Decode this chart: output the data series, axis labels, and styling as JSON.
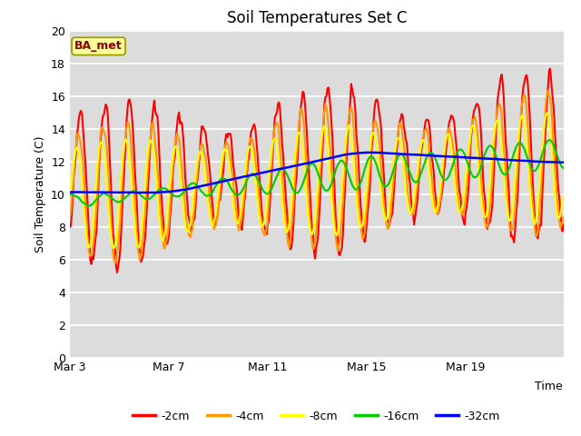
{
  "title": "Soil Temperatures Set C",
  "xlabel": "Time",
  "ylabel": "Soil Temperature (C)",
  "ylim": [
    0,
    20
  ],
  "annotation": "BA_met",
  "legend_labels": [
    "-2cm",
    "-4cm",
    "-8cm",
    "-16cm",
    "-32cm"
  ],
  "line_colors": [
    "#ff0000",
    "#ff9900",
    "#ffff00",
    "#00cc00",
    "#0000ff"
  ],
  "line_widths": [
    1.5,
    1.5,
    1.5,
    1.5,
    1.8
  ],
  "xtick_labels": [
    "Mar 3",
    "Mar 7",
    "Mar 11",
    "Mar 15",
    "Mar 19"
  ],
  "xtick_positions": [
    0,
    96,
    192,
    288,
    384
  ],
  "background_color": "#dcdcdc",
  "plot_bg_color": "#dcdcdc",
  "grid_color": "#ffffff",
  "title_fontsize": 12,
  "n_points": 480
}
